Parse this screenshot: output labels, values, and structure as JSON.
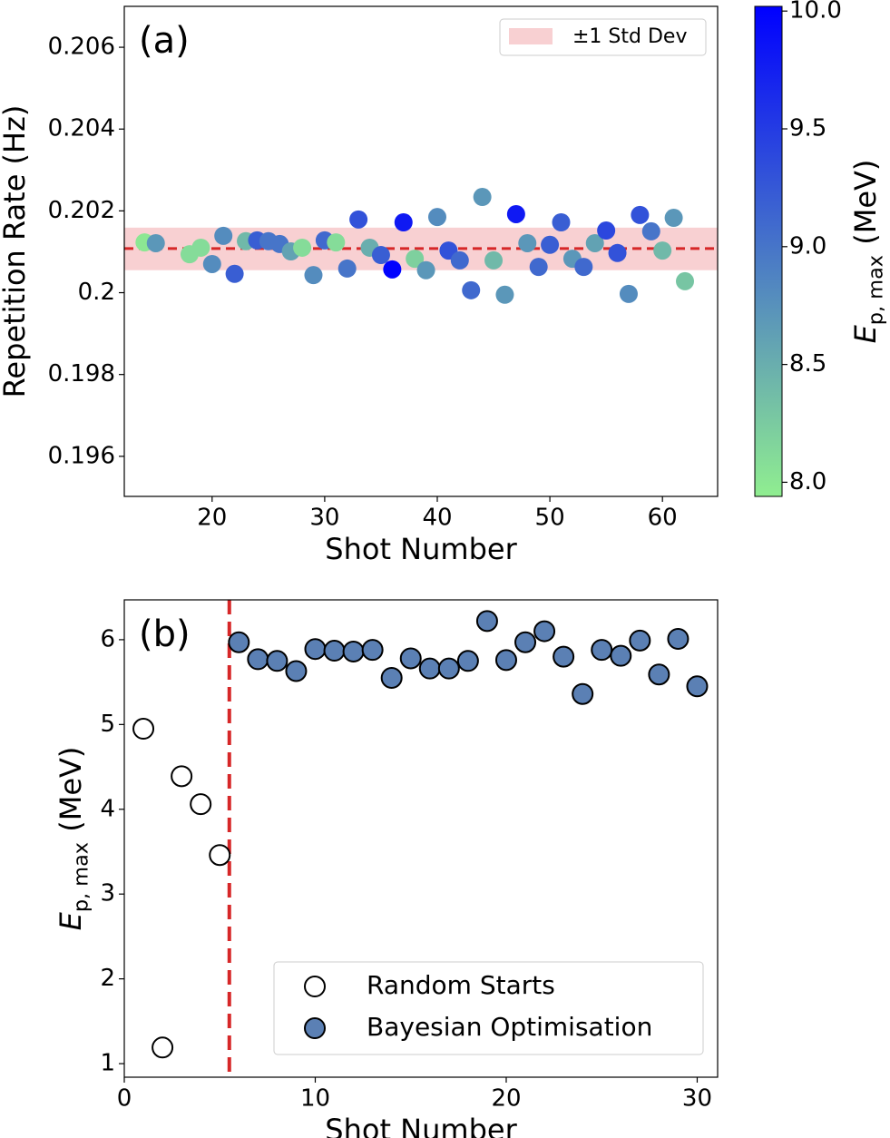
{
  "chart_data": [
    {
      "type": "scatter",
      "panel_label": "(a)",
      "xlabel": "Shot Number",
      "ylabel": "Repetition Rate (Hz)",
      "x": [
        14,
        15,
        18,
        19,
        20,
        21,
        22,
        23,
        24,
        25,
        26,
        27,
        28,
        29,
        30,
        31,
        32,
        33,
        34,
        35,
        36,
        37,
        38,
        39,
        40,
        41,
        42,
        43,
        44,
        45,
        46,
        47,
        48,
        49,
        50,
        51,
        52,
        53,
        54,
        55,
        56,
        57,
        58,
        59,
        60,
        61,
        62
      ],
      "values": [
        0.20123,
        0.20121,
        0.20094,
        0.2011,
        0.2007,
        0.20139,
        0.20046,
        0.20126,
        0.20128,
        0.20126,
        0.20119,
        0.20101,
        0.2011,
        0.20043,
        0.20128,
        0.20123,
        0.20059,
        0.20179,
        0.2011,
        0.20092,
        0.20057,
        0.20172,
        0.20083,
        0.20055,
        0.20185,
        0.20103,
        0.20079,
        0.20006,
        0.20234,
        0.20079,
        0.19995,
        0.20192,
        0.20121,
        0.20063,
        0.20117,
        0.20172,
        0.20083,
        0.20063,
        0.20121,
        0.20152,
        0.20097,
        0.19997,
        0.2019,
        0.2015,
        0.20103,
        0.20183,
        0.20028
      ],
      "c": [
        8.0,
        8.7,
        8.1,
        8.1,
        8.8,
        8.8,
        9.2,
        8.4,
        9.2,
        9.0,
        9.0,
        8.6,
        8.1,
        8.8,
        9.1,
        8.1,
        9.0,
        9.3,
        8.5,
        9.2,
        10.0,
        9.8,
        8.2,
        8.7,
        8.8,
        9.3,
        9.1,
        9.1,
        8.7,
        8.4,
        8.7,
        9.8,
        8.7,
        9.1,
        9.2,
        9.2,
        8.7,
        9.1,
        8.6,
        9.4,
        9.3,
        8.8,
        9.3,
        9.0,
        8.4,
        8.7,
        8.3
      ],
      "mean": 0.20108,
      "mean_color": "#d62728",
      "band": {
        "label": "±1 Std Dev",
        "range": [
          0.20055,
          0.20159
        ],
        "color": "#f8d0d2"
      },
      "legend": "upper right",
      "xlim": [
        12.2,
        64.9
      ],
      "xticks": [
        20,
        30,
        40,
        50,
        60
      ],
      "ylim": [
        0.19502,
        0.207
      ],
      "yticks": [
        0.196,
        0.198,
        0.2,
        0.202,
        0.204,
        0.206
      ],
      "colorbar": {
        "label": {
          "main": "E",
          "sub": "p, max",
          "rest": "(MeV)"
        },
        "colormap": [
          "#90ee90",
          "#0000ff"
        ],
        "clim": [
          7.94,
          10.02
        ],
        "ticks": [
          {
            "value": 8,
            "label": "8.0"
          },
          8.5,
          {
            "value": 9,
            "label": "9.0"
          },
          9.5,
          {
            "value": 10,
            "label": "10.0"
          }
        ]
      }
    },
    {
      "type": "scatter",
      "panel_label": "(b)",
      "xlabel": "Shot Number",
      "ylabel": {
        "main": "E",
        "sub": "p, max",
        "rest": "(MeV)"
      },
      "series": [
        {
          "name": "Random Starts",
          "color": "#ffffff",
          "edgecolor": "#000000",
          "x": [
            1,
            2,
            3,
            4,
            5
          ],
          "values": [
            4.95,
            1.19,
            4.39,
            4.06,
            3.46
          ]
        },
        {
          "name": "Bayesian Optimisation",
          "color": "#5b80b4",
          "edgecolor": "#000000",
          "x": [
            6,
            7,
            8,
            9,
            10,
            11,
            12,
            13,
            14,
            15,
            16,
            17,
            18,
            19,
            20,
            21,
            22,
            23,
            24,
            25,
            26,
            27,
            28,
            29,
            30
          ],
          "values": [
            5.97,
            5.77,
            5.75,
            5.63,
            5.89,
            5.87,
            5.86,
            5.88,
            5.55,
            5.78,
            5.66,
            5.66,
            5.75,
            6.22,
            5.76,
            5.97,
            6.1,
            5.8,
            5.36,
            5.88,
            5.81,
            5.99,
            5.59,
            6.01,
            5.45
          ]
        }
      ],
      "vline": 5.5,
      "vline_color": "#d62728",
      "legend": "lower right",
      "xlim": [
        0,
        31.07
      ],
      "xticks": [
        0,
        10,
        20,
        30
      ],
      "ylim": [
        0.84,
        6.47
      ],
      "yticks": [
        1,
        2,
        3,
        4,
        5,
        6
      ]
    }
  ]
}
